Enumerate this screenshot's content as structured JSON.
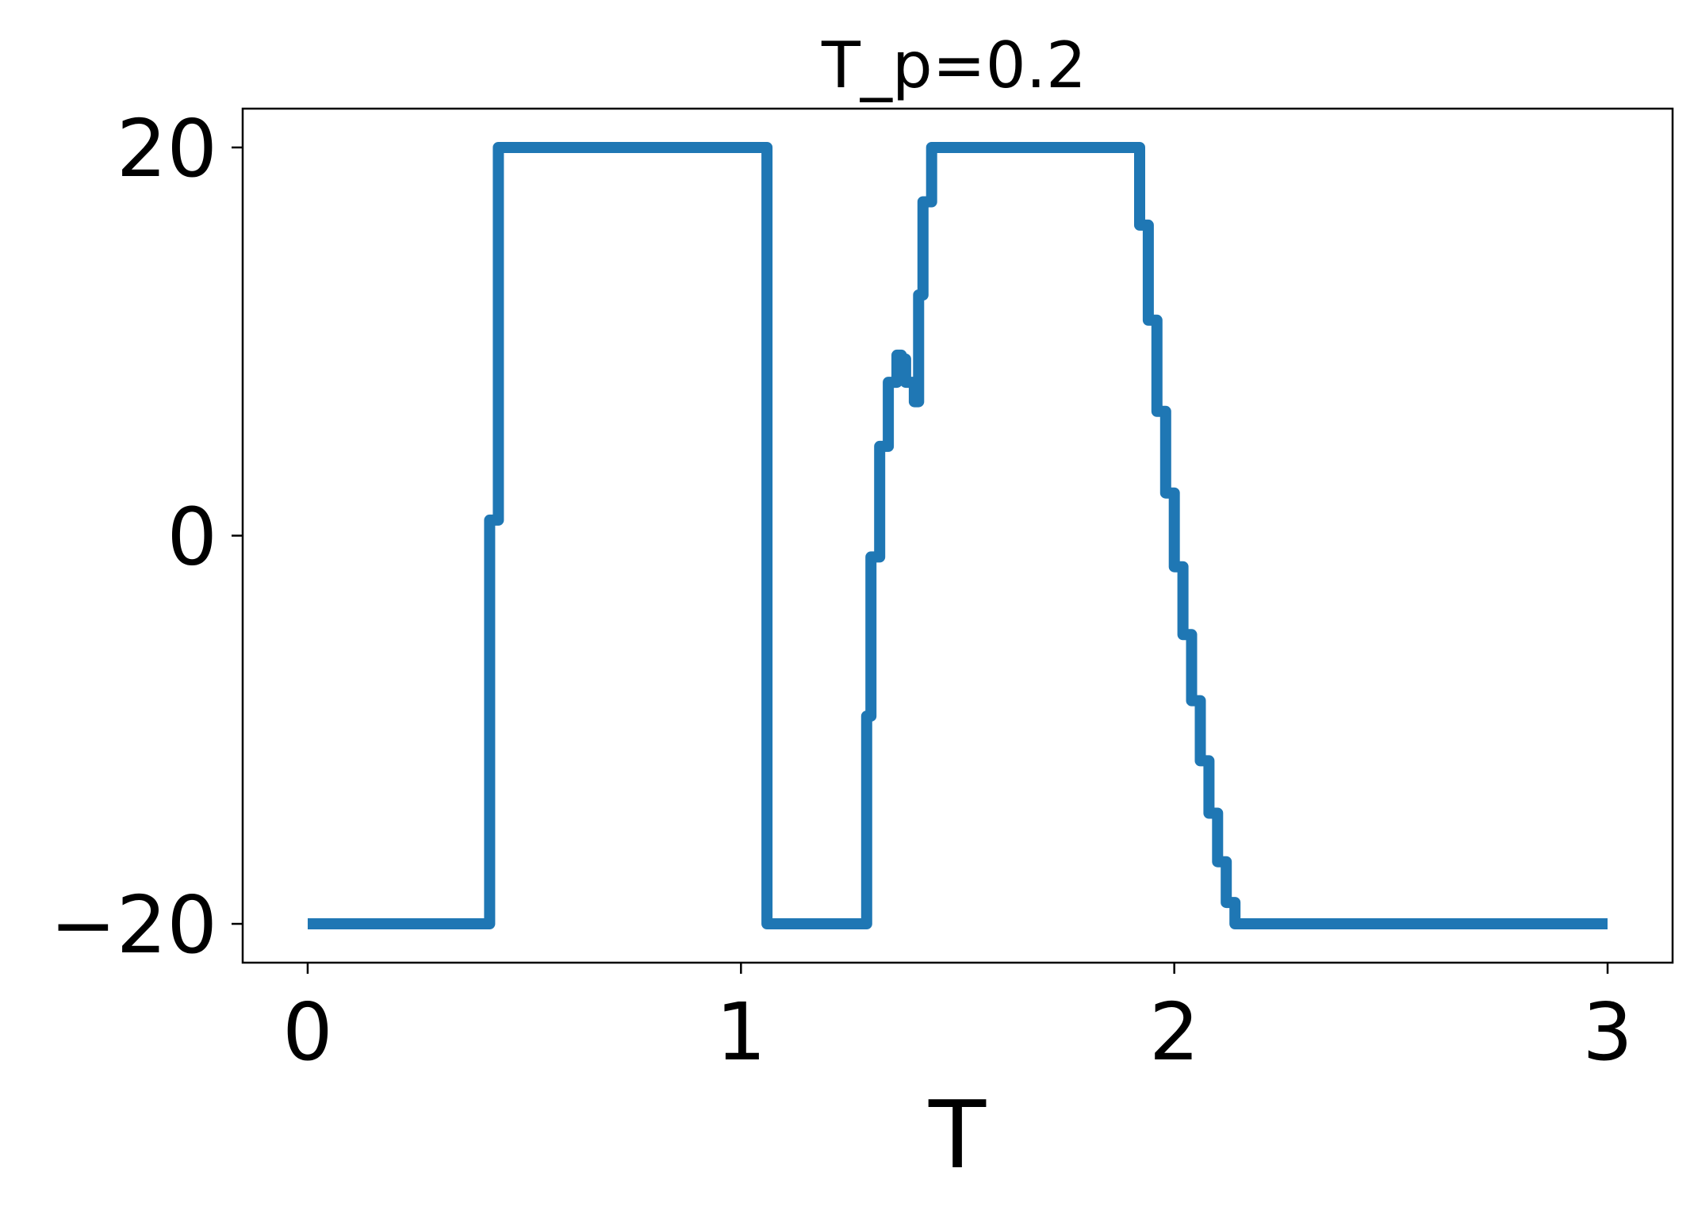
{
  "chart_data": {
    "type": "line",
    "title": "T_p=0.2",
    "xlabel": "T",
    "ylabel": "",
    "xlim": [
      -0.15,
      3.15
    ],
    "ylim": [
      -22,
      22
    ],
    "xticks": [
      0,
      1,
      2,
      3
    ],
    "xtick_labels": [
      "0",
      "1",
      "2",
      "3"
    ],
    "yticks": [
      -20,
      0,
      20
    ],
    "ytick_labels": [
      "−20",
      "0",
      "20"
    ],
    "grid": false,
    "line_color": "#1f77b4",
    "series": [
      {
        "name": "",
        "x": [
          0.0,
          0.42,
          0.42,
          0.44,
          0.44,
          1.06,
          1.06,
          1.29,
          1.29,
          1.3,
          1.3,
          1.32,
          1.32,
          1.34,
          1.34,
          1.36,
          1.36,
          1.37,
          1.37,
          1.38,
          1.38,
          1.4,
          1.4,
          1.41,
          1.41,
          1.42,
          1.42,
          1.44,
          1.44,
          1.46,
          1.46,
          1.48,
          1.48,
          1.5,
          1.5,
          1.92,
          1.92,
          1.94,
          1.94,
          1.96,
          1.96,
          1.98,
          1.98,
          2.0,
          2.0,
          2.02,
          2.02,
          2.04,
          2.04,
          2.06,
          2.06,
          2.08,
          2.08,
          2.1,
          2.1,
          2.12,
          2.12,
          2.14,
          2.14,
          3.0
        ],
        "y": [
          -20,
          -20,
          0.8,
          0.8,
          20,
          20,
          -20,
          -20,
          -9.3,
          -9.3,
          -1.1,
          -1.1,
          4.6,
          4.6,
          7.9,
          7.9,
          9.3,
          9.3,
          9.1,
          9.1,
          7.9,
          7.9,
          6.9,
          6.9,
          12.4,
          12.4,
          17.2,
          17.2,
          20,
          20,
          20,
          20,
          20,
          20,
          20,
          20,
          16.0,
          16.0,
          11.1,
          11.1,
          6.4,
          6.4,
          2.2,
          2.2,
          -1.6,
          -1.6,
          -5.1,
          -5.1,
          -8.5,
          -8.5,
          -11.6,
          -11.6,
          -14.3,
          -14.3,
          -16.8,
          -16.8,
          -18.9,
          -18.9,
          -20,
          -20
        ]
      }
    ]
  }
}
